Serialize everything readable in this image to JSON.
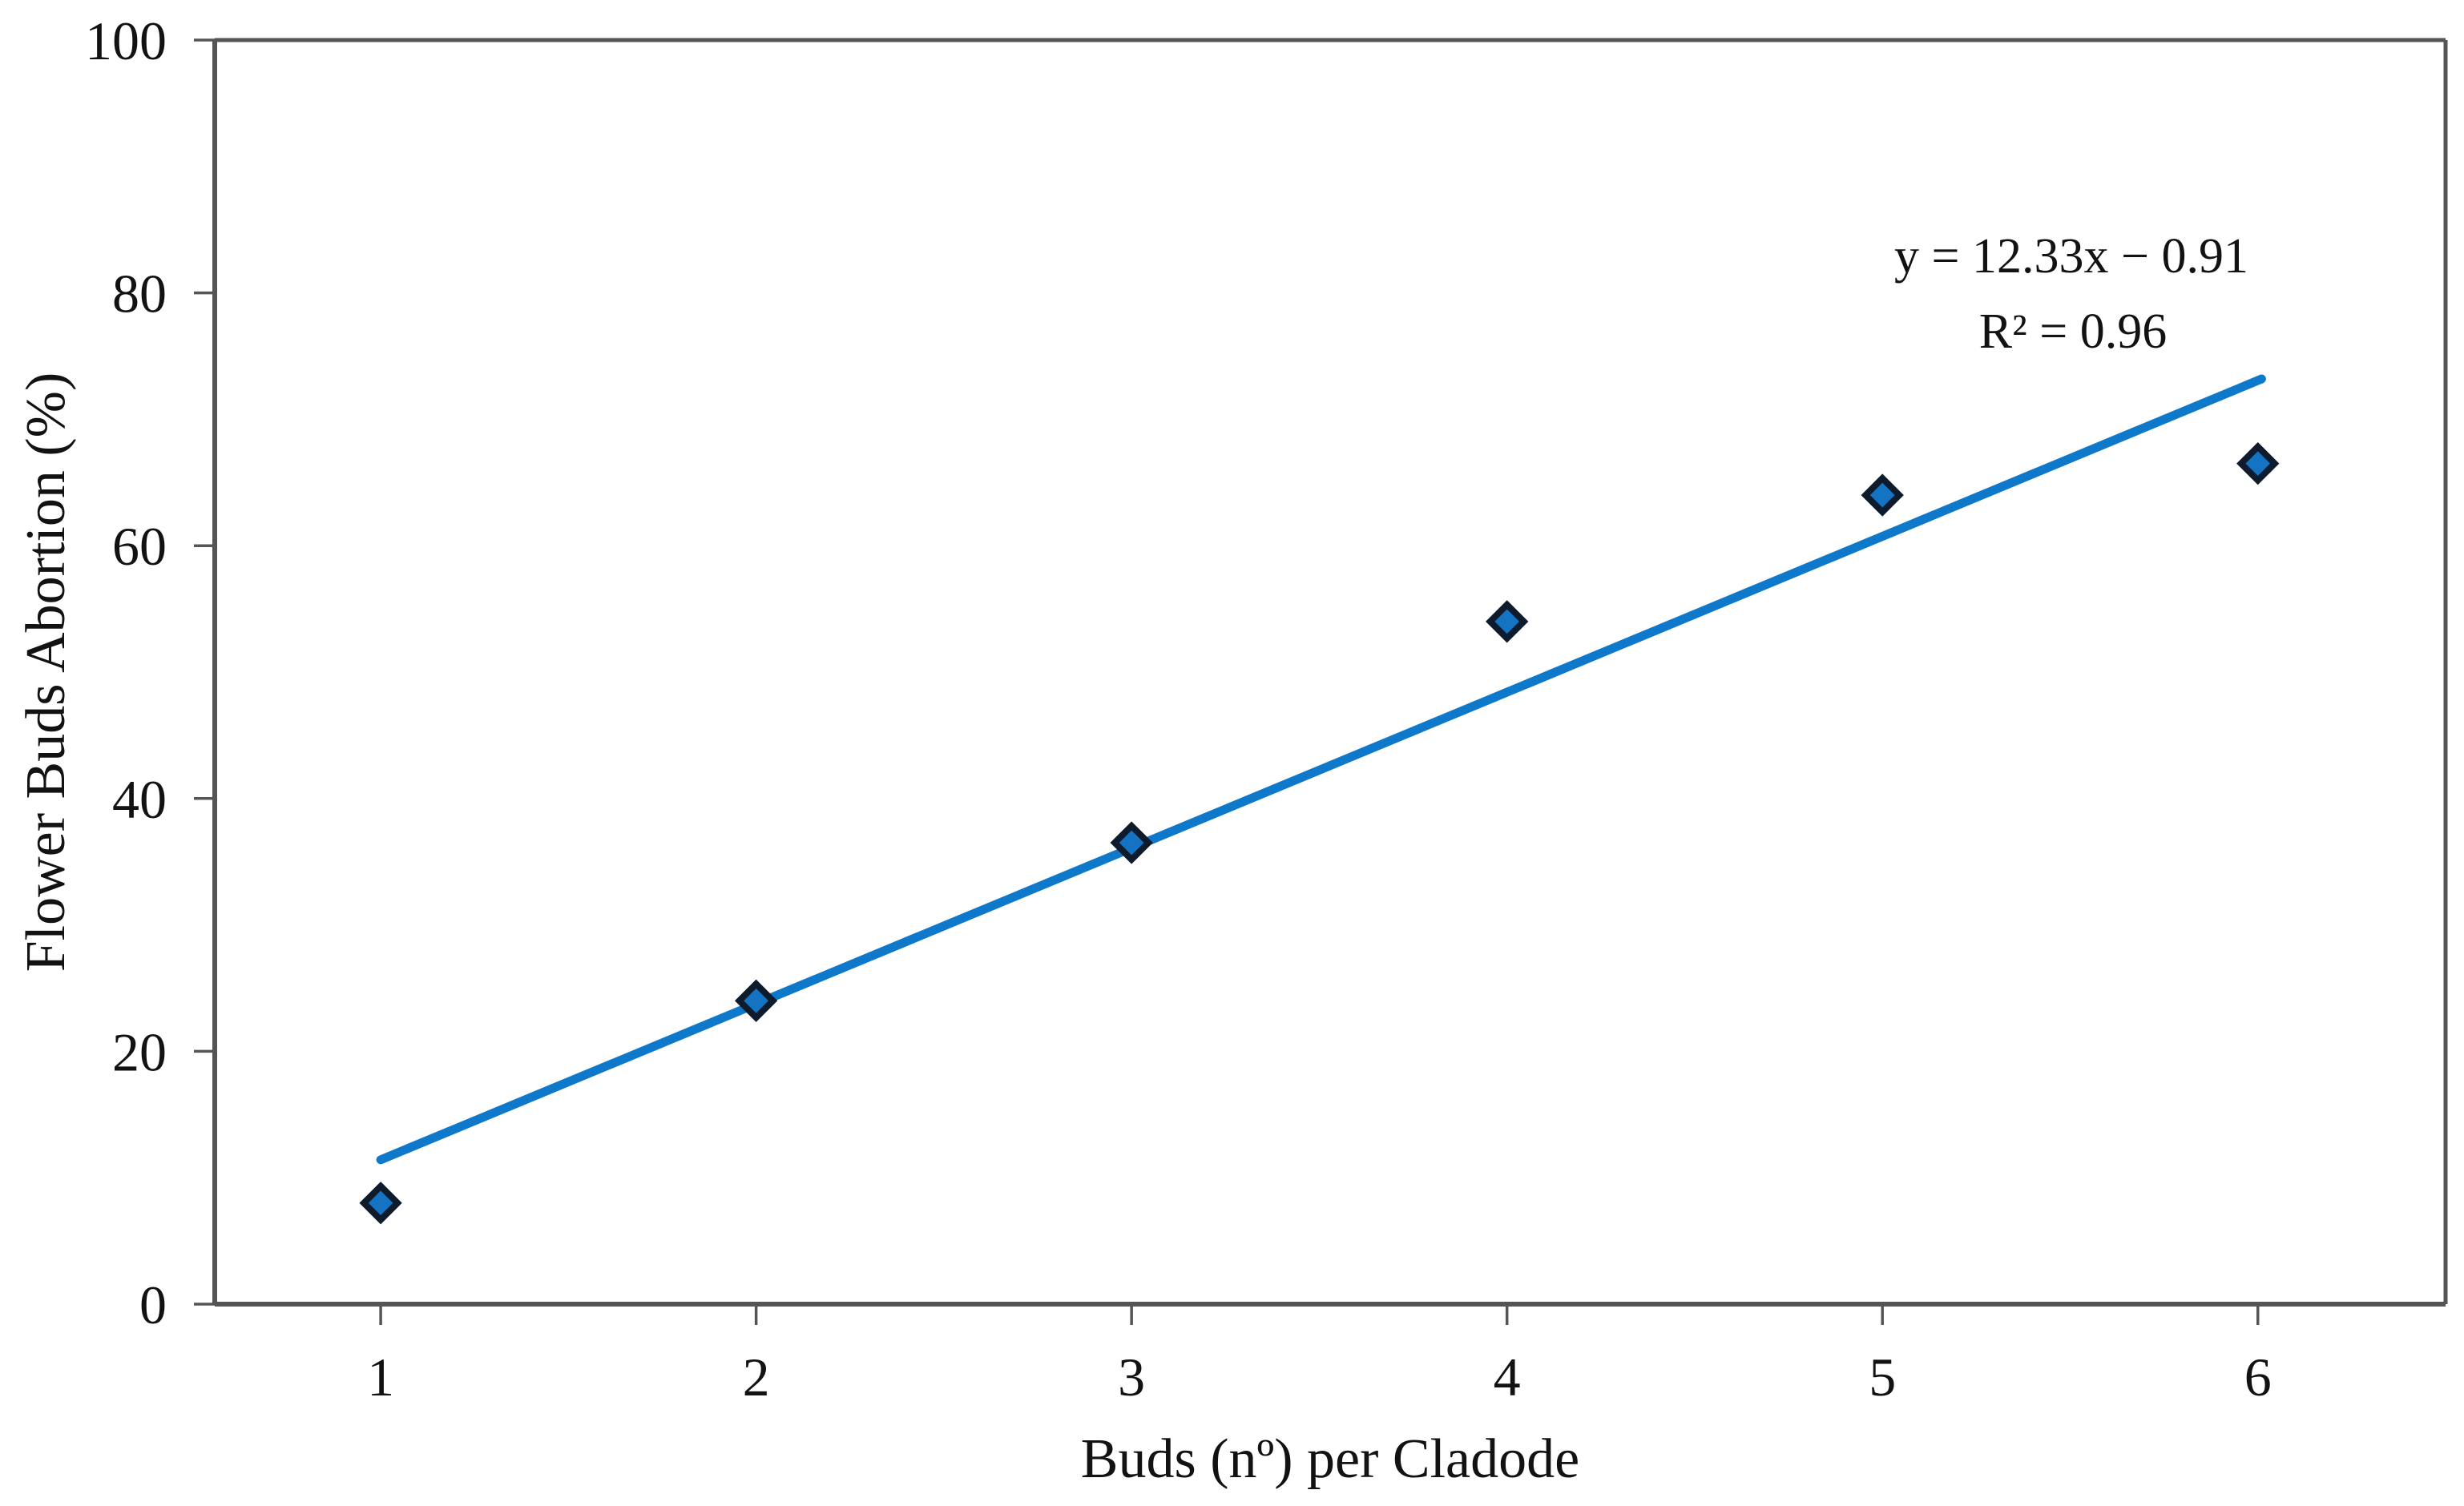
{
  "chart_data": {
    "type": "scatter",
    "title": "",
    "xlabel": "Buds (nº) per Cladode",
    "ylabel": "Flower Buds Abortion (%)",
    "x": [
      1,
      2,
      3,
      4,
      5,
      6
    ],
    "y": [
      8,
      24,
      36.5,
      54,
      64,
      66.5
    ],
    "x_ticks": [
      1,
      2,
      3,
      4,
      5,
      6
    ],
    "y_ticks": [
      0,
      20,
      40,
      60,
      80,
      100
    ],
    "xlim": [
      0.558,
      6.5
    ],
    "ylim": [
      0,
      100
    ],
    "grid": false,
    "legend": null,
    "marker_shape": "diamond",
    "trendline": {
      "slope": 12.33,
      "intercept": -0.91,
      "x_start": 1.0,
      "x_end": 6.01,
      "equation": "y = 12.33x − 0.91",
      "r_squared": "R² = 0.96"
    },
    "colors": {
      "trendline": "#0e78ca",
      "marker_fill": "#1473c2",
      "marker_stroke": "#0e1b2d",
      "axis": "#555555",
      "text": "#121212"
    }
  }
}
